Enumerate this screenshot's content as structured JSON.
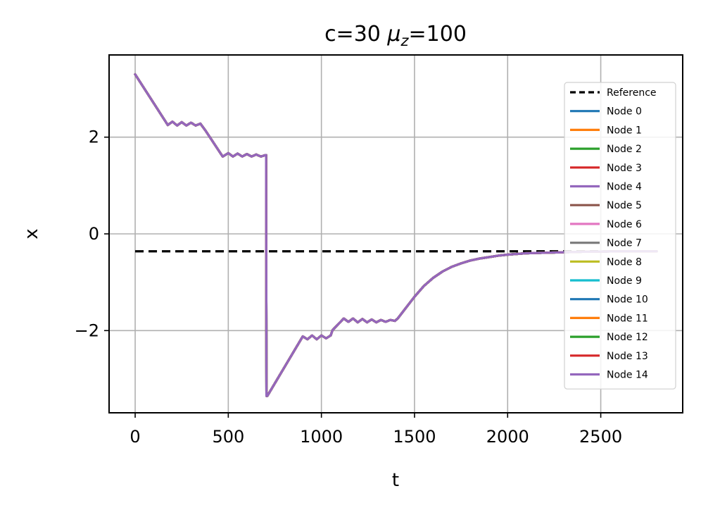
{
  "chart_data": {
    "type": "line",
    "title_main": "c=30 ",
    "title_mu": "μ",
    "title_sub": "z",
    "title_tail": "=100",
    "xlabel": "t",
    "ylabel": "x",
    "xlim": [
      -140,
      2940
    ],
    "ylim": [
      -3.7,
      3.7
    ],
    "xticks": [
      0,
      500,
      1000,
      1500,
      2000,
      2500
    ],
    "yticks": [
      -2,
      0,
      2
    ],
    "ytick_labels": [
      "−2",
      "0",
      "2"
    ],
    "grid": true,
    "legend_position": "upper-right",
    "reference": {
      "name": "Reference",
      "color": "#000000",
      "x": [
        0,
        2800
      ],
      "y": [
        -0.36,
        -0.36
      ]
    },
    "series": [
      {
        "name": "Node 0",
        "color": "#1f77b4"
      },
      {
        "name": "Node 1",
        "color": "#ff7f0e"
      },
      {
        "name": "Node 2",
        "color": "#2ca02c"
      },
      {
        "name": "Node 3",
        "color": "#d62728"
      },
      {
        "name": "Node 4",
        "color": "#9467bd"
      },
      {
        "name": "Node 5",
        "color": "#8c564b"
      },
      {
        "name": "Node 6",
        "color": "#e377c2"
      },
      {
        "name": "Node 7",
        "color": "#7f7f7f"
      },
      {
        "name": "Node 8",
        "color": "#bcbd22"
      },
      {
        "name": "Node 9",
        "color": "#17becf"
      },
      {
        "name": "Node 10",
        "color": "#1f77b4"
      },
      {
        "name": "Node 11",
        "color": "#ff7f0e"
      },
      {
        "name": "Node 12",
        "color": "#2ca02c"
      },
      {
        "name": "Node 13",
        "color": "#d62728"
      },
      {
        "name": "Node 14",
        "color": "#9467bd"
      }
    ],
    "trajectory": {
      "x": [
        0,
        175,
        200,
        225,
        250,
        275,
        300,
        325,
        350,
        375,
        470,
        500,
        525,
        550,
        575,
        600,
        625,
        650,
        675,
        700,
        703,
        705,
        710,
        900,
        925,
        950,
        975,
        1000,
        1025,
        1050,
        1060,
        1120,
        1145,
        1170,
        1195,
        1220,
        1245,
        1270,
        1295,
        1320,
        1345,
        1370,
        1395,
        1410,
        1450,
        1500,
        1550,
        1600,
        1650,
        1700,
        1750,
        1800,
        1850,
        1900,
        1950,
        2000,
        2100,
        2200,
        2300,
        2400,
        2500,
        2600,
        2700,
        2800
      ],
      "y": [
        3.3,
        2.25,
        2.32,
        2.24,
        2.31,
        2.24,
        2.3,
        2.24,
        2.28,
        2.15,
        1.6,
        1.67,
        1.6,
        1.66,
        1.6,
        1.65,
        1.6,
        1.64,
        1.6,
        1.63,
        1.63,
        -3.35,
        -3.35,
        -2.12,
        -2.18,
        -2.1,
        -2.18,
        -2.1,
        -2.16,
        -2.1,
        -1.99,
        -1.75,
        -1.82,
        -1.75,
        -1.83,
        -1.76,
        -1.83,
        -1.77,
        -1.83,
        -1.78,
        -1.82,
        -1.78,
        -1.8,
        -1.75,
        -1.55,
        -1.3,
        -1.08,
        -0.91,
        -0.78,
        -0.68,
        -0.61,
        -0.55,
        -0.51,
        -0.48,
        -0.45,
        -0.43,
        -0.4,
        -0.39,
        -0.38,
        -0.37,
        -0.365,
        -0.36,
        -0.36,
        -0.36
      ]
    }
  }
}
